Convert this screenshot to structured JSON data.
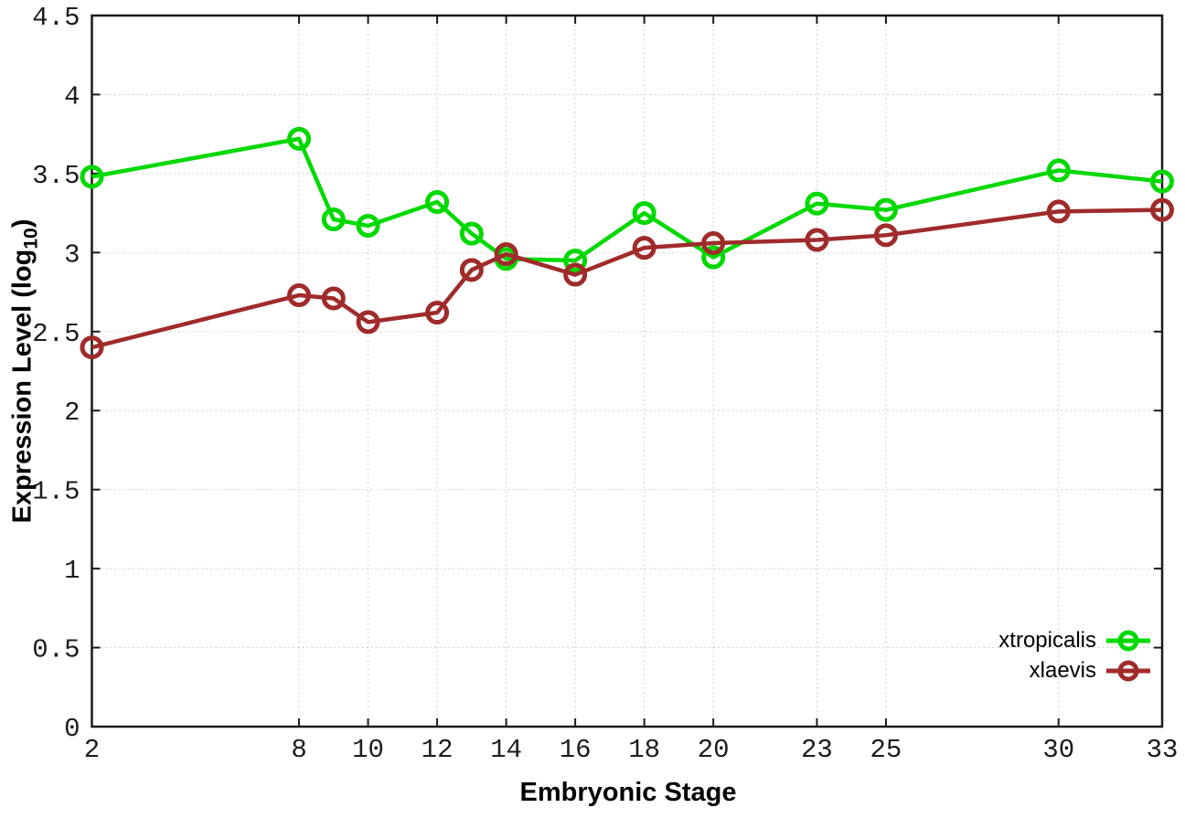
{
  "figure": {
    "background": "#ffffff",
    "border_color": "#1a1a1a",
    "grid_color": "#c2c2c2",
    "tick_label_color": "#1c1c1c"
  },
  "chart_data": {
    "type": "line",
    "title": "",
    "xlabel": "Embryonic Stage",
    "ylabel": "Expression Level (log10)",
    "ylabel_parts": {
      "prefix": "Expression Level (log",
      "sub": "10",
      "suffix": ")"
    },
    "xlim": [
      2,
      33
    ],
    "ylim": [
      0,
      4.5
    ],
    "grid": true,
    "legend_position": "inside-bottom-right",
    "x": [
      2,
      8,
      9,
      10,
      12,
      13,
      14,
      16,
      18,
      20,
      23,
      25,
      30,
      33
    ],
    "xticks": {
      "values": [
        2,
        8,
        10,
        12,
        14,
        16,
        18,
        20,
        23,
        25,
        30,
        33
      ],
      "labels": [
        "2",
        "8",
        "10",
        "12",
        "14",
        "16",
        "18",
        "20",
        "23",
        "25",
        "30",
        "33"
      ]
    },
    "yticks": {
      "values": [
        0,
        0.5,
        1,
        1.5,
        2,
        2.5,
        3,
        3.5,
        4,
        4.5
      ],
      "labels": [
        "0",
        "0.5",
        "1",
        "1.5",
        "2",
        "2.5",
        "3",
        "3.5",
        "4",
        "4.5"
      ]
    },
    "series": [
      {
        "name": "xtropicalis",
        "color": "#00d800",
        "marker": "open-circle",
        "values": [
          3.48,
          3.72,
          3.21,
          3.17,
          3.32,
          3.12,
          2.96,
          2.95,
          3.25,
          2.97,
          3.31,
          3.27,
          3.52,
          3.45
        ]
      },
      {
        "name": "xlaevis",
        "color": "#a02b2b",
        "marker": "open-circle",
        "values": [
          2.4,
          2.73,
          2.71,
          2.56,
          2.62,
          2.89,
          2.99,
          2.86,
          3.03,
          3.06,
          3.08,
          3.11,
          3.26,
          3.27
        ]
      }
    ]
  }
}
